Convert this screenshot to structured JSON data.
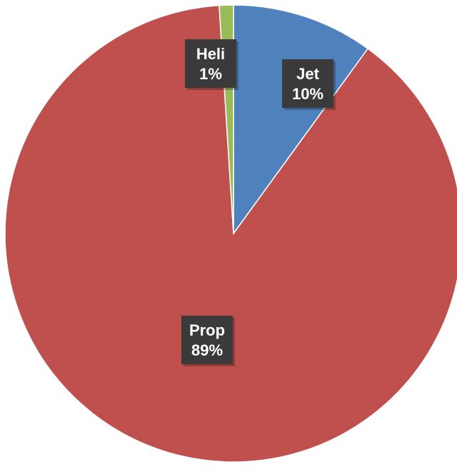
{
  "chart_data": {
    "type": "pie",
    "title": "",
    "categories": [
      "Jet",
      "Prop",
      "Heli"
    ],
    "values": [
      10,
      89,
      1
    ],
    "labels": [
      "10%",
      "89%",
      "1%"
    ],
    "colors": [
      "#4f81bd",
      "#c0504d",
      "#9bbb59"
    ],
    "start_angle_deg": 0,
    "direction": "clockwise",
    "legend": "none",
    "data_labels": "category-and-percent"
  }
}
